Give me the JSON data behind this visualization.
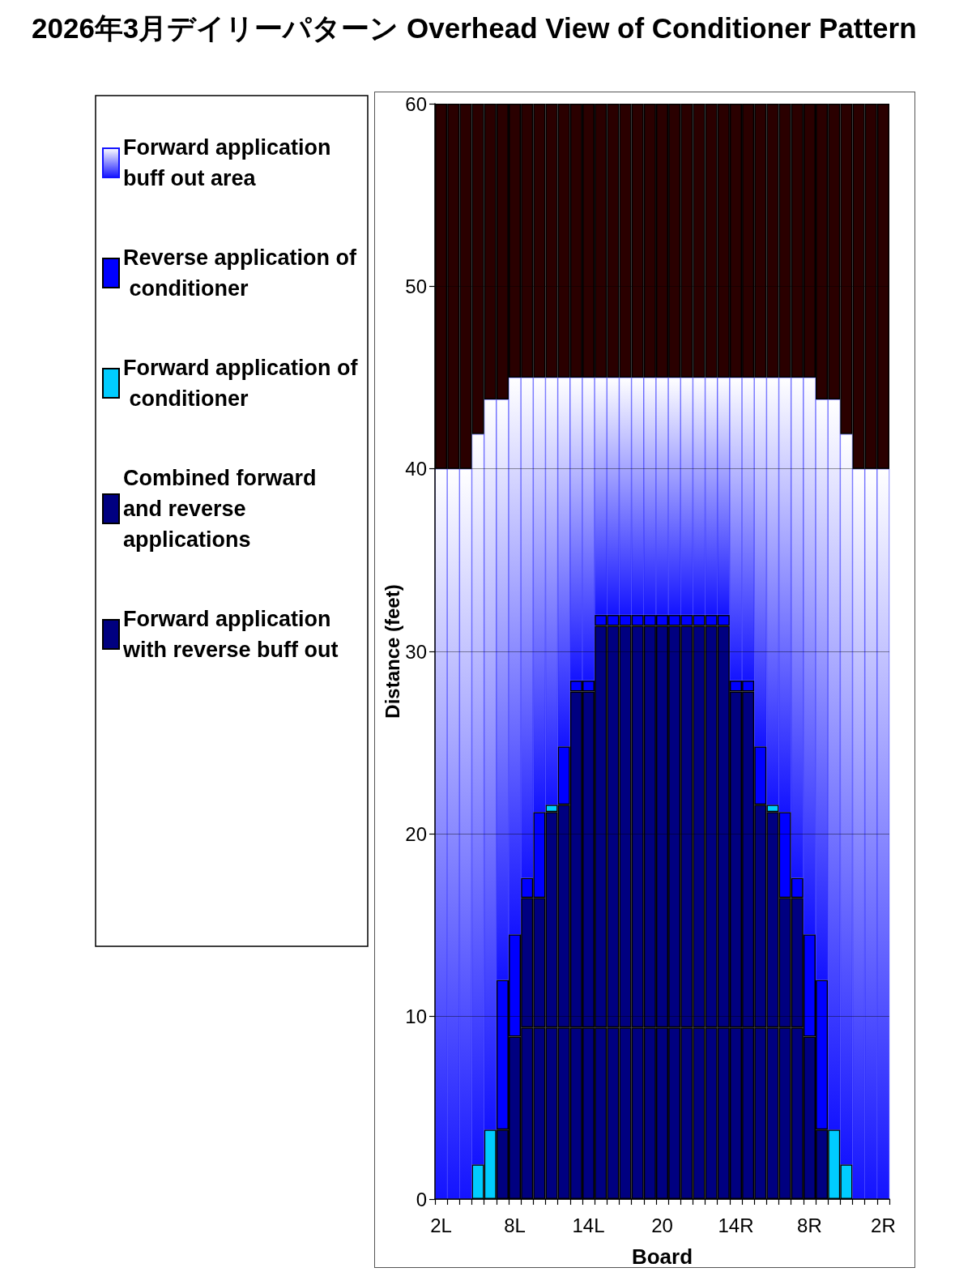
{
  "chart_data": {
    "type": "bar",
    "title": "2026年3月デイリーパターン Overhead View of Conditioner Pattern",
    "xlabel": "Board",
    "ylabel": "Distance (feet)",
    "categories": [
      "2L",
      null,
      null,
      null,
      null,
      null,
      "8L",
      null,
      null,
      null,
      null,
      null,
      "14L",
      null,
      null,
      null,
      null,
      null,
      "20",
      null,
      null,
      null,
      null,
      null,
      "14R",
      null,
      null,
      null,
      null,
      null,
      "8R",
      null,
      null,
      null,
      null,
      null,
      "2R"
    ],
    "stacked": true,
    "ylim": [
      0,
      60
    ],
    "yticks": [
      0,
      10,
      20,
      30,
      40,
      50,
      60
    ],
    "grid": "y",
    "legend": "left",
    "series": [
      {
        "name": "Forward application with reverse buff out",
        "color": "#000080",
        "values": [
          null,
          null,
          null,
          null,
          null,
          3.8,
          8.9,
          9.4,
          9.4,
          9.4,
          9.4,
          9.4,
          9.4,
          9.4,
          9.4,
          9.4,
          9.4,
          9.4,
          9.4,
          9.4,
          9.4,
          9.4,
          9.4,
          9.4,
          9.4,
          9.4,
          9.4,
          9.4,
          9.4,
          9.4,
          8.9,
          3.8,
          null,
          null,
          null,
          null,
          null
        ]
      },
      {
        "name": "Combined forward and reverse applications",
        "color": "#000080",
        "values": [
          null,
          null,
          null,
          null,
          null,
          null,
          null,
          7.1,
          7.1,
          11.8,
          12.2,
          18.4,
          18.4,
          22,
          22,
          22,
          22,
          22,
          22,
          22,
          22,
          22,
          22,
          22,
          18.4,
          18.4,
          12.2,
          11.8,
          7.1,
          7.1,
          null,
          null,
          null,
          null,
          null,
          null,
          null
        ]
      },
      {
        "name": "Forward application of conditioner",
        "color": "#00ccff",
        "values": [
          null,
          null,
          null,
          1.9,
          3.8,
          null,
          null,
          null,
          null,
          0.4,
          null,
          null,
          null,
          null,
          null,
          null,
          null,
          null,
          null,
          null,
          null,
          null,
          null,
          null,
          null,
          null,
          null,
          0.4,
          null,
          null,
          null,
          null,
          3.8,
          1.9,
          null,
          null,
          null
        ]
      },
      {
        "name": "Reverse application of conditioner",
        "color": "#0000ff",
        "values": [
          null,
          null,
          null,
          null,
          null,
          8.2,
          5.6,
          1.1,
          4.7,
          null,
          3.2,
          0.6,
          0.6,
          0.6,
          0.6,
          0.6,
          0.6,
          0.6,
          0.6,
          0.6,
          0.6,
          0.6,
          0.6,
          0.6,
          0.6,
          0.6,
          3.2,
          null,
          4.7,
          1.1,
          5.6,
          8.2,
          null,
          null,
          null,
          null,
          null
        ]
      },
      {
        "name": "Forward application buff out area",
        "color": "#1414ff",
        "values": [
          40,
          40,
          40,
          40,
          40,
          31.8,
          30.5,
          27.4,
          23.8,
          23.4,
          20.2,
          16.6,
          16.6,
          13,
          13,
          13,
          13,
          13,
          13,
          13,
          13,
          13,
          13,
          13,
          16.6,
          16.6,
          20.2,
          23.4,
          23.8,
          27.4,
          30.5,
          31.8,
          40,
          40,
          40,
          40,
          40
        ]
      },
      {
        "color": "#2a0000",
        "values": [
          20,
          20,
          20,
          18.1,
          16.2,
          16.2,
          15,
          15,
          15,
          15,
          15,
          15,
          15,
          15,
          15,
          15,
          15,
          15,
          15,
          15,
          15,
          15,
          15,
          15,
          15,
          15,
          15,
          15,
          15,
          15,
          15,
          16.2,
          16.2,
          18.1,
          20,
          20,
          20
        ]
      }
    ]
  }
}
